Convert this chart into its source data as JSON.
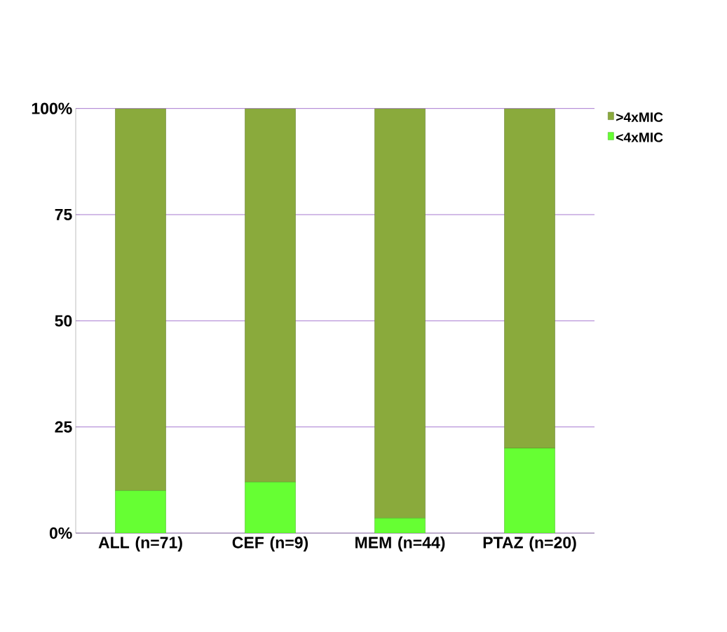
{
  "chart_data": {
    "type": "bar",
    "stacked": true,
    "categories": [
      "ALL (n=71)",
      "CEF (n=9)",
      "MEM (n=44)",
      "PTAZ (n=20)"
    ],
    "series": [
      {
        "name": "<4xMIC",
        "color": "#66ff33",
        "values": [
          10,
          12,
          3.5,
          20
        ]
      },
      {
        "name": ">4xMIC",
        "color": "#8aaa3c",
        "values": [
          90,
          88,
          96.5,
          80
        ]
      }
    ],
    "ylim": [
      0,
      100
    ],
    "yticks": [
      {
        "value": 0,
        "label": "0%"
      },
      25,
      50,
      75,
      {
        "value": 100,
        "label": "100%"
      }
    ],
    "grid": "y",
    "legend": "right"
  }
}
